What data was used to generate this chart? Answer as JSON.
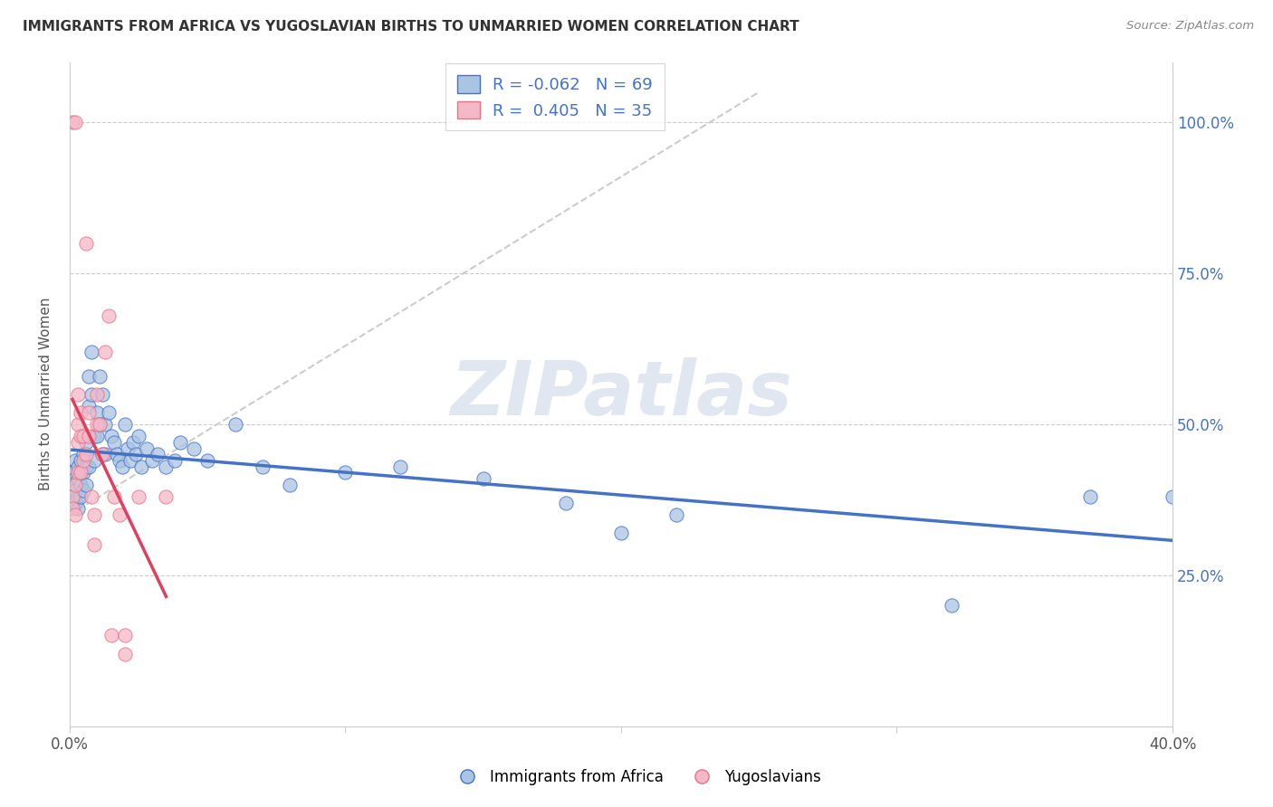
{
  "title": "IMMIGRANTS FROM AFRICA VS YUGOSLAVIAN BIRTHS TO UNMARRIED WOMEN CORRELATION CHART",
  "source": "Source: ZipAtlas.com",
  "ylabel": "Births to Unmarried Women",
  "xlim": [
    0.0,
    0.4
  ],
  "ylim": [
    0.0,
    1.1
  ],
  "yticks": [
    0.0,
    0.25,
    0.5,
    0.75,
    1.0
  ],
  "ytick_labels": [
    "",
    "25.0%",
    "50.0%",
    "75.0%",
    "100.0%"
  ],
  "xticks": [
    0.0,
    0.1,
    0.2,
    0.3,
    0.4
  ],
  "xtick_labels": [
    "0.0%",
    "",
    "",
    "",
    "40.0%"
  ],
  "legend_blue_label": "Immigrants from Africa",
  "legend_pink_label": "Yugoslavians",
  "R_blue": -0.062,
  "N_blue": 69,
  "R_pink": 0.405,
  "N_pink": 35,
  "blue_color": "#aac4e4",
  "pink_color": "#f5b8c8",
  "blue_edge_color": "#4472c4",
  "pink_edge_color": "#e87585",
  "blue_line_color": "#4472c4",
  "pink_line_color": "#e04060",
  "watermark": "ZIPatlas",
  "watermark_color": "#ccd8e8",
  "background_color": "#ffffff",
  "grid_color": "#cccccc",
  "blue_scatter": [
    [
      0.001,
      0.42
    ],
    [
      0.001,
      0.4
    ],
    [
      0.001,
      0.38
    ],
    [
      0.002,
      0.44
    ],
    [
      0.002,
      0.41
    ],
    [
      0.002,
      0.39
    ],
    [
      0.002,
      0.37
    ],
    [
      0.003,
      0.43
    ],
    [
      0.003,
      0.41
    ],
    [
      0.003,
      0.38
    ],
    [
      0.003,
      0.36
    ],
    [
      0.004,
      0.44
    ],
    [
      0.004,
      0.42
    ],
    [
      0.004,
      0.4
    ],
    [
      0.004,
      0.38
    ],
    [
      0.005,
      0.45
    ],
    [
      0.005,
      0.42
    ],
    [
      0.005,
      0.39
    ],
    [
      0.006,
      0.47
    ],
    [
      0.006,
      0.43
    ],
    [
      0.006,
      0.4
    ],
    [
      0.007,
      0.58
    ],
    [
      0.007,
      0.53
    ],
    [
      0.007,
      0.43
    ],
    [
      0.008,
      0.62
    ],
    [
      0.008,
      0.55
    ],
    [
      0.009,
      0.48
    ],
    [
      0.009,
      0.44
    ],
    [
      0.01,
      0.52
    ],
    [
      0.01,
      0.48
    ],
    [
      0.011,
      0.58
    ],
    [
      0.011,
      0.5
    ],
    [
      0.012,
      0.55
    ],
    [
      0.012,
      0.45
    ],
    [
      0.013,
      0.5
    ],
    [
      0.013,
      0.45
    ],
    [
      0.014,
      0.52
    ],
    [
      0.015,
      0.48
    ],
    [
      0.016,
      0.47
    ],
    [
      0.017,
      0.45
    ],
    [
      0.018,
      0.44
    ],
    [
      0.019,
      0.43
    ],
    [
      0.02,
      0.5
    ],
    [
      0.021,
      0.46
    ],
    [
      0.022,
      0.44
    ],
    [
      0.023,
      0.47
    ],
    [
      0.024,
      0.45
    ],
    [
      0.025,
      0.48
    ],
    [
      0.026,
      0.43
    ],
    [
      0.028,
      0.46
    ],
    [
      0.03,
      0.44
    ],
    [
      0.032,
      0.45
    ],
    [
      0.035,
      0.43
    ],
    [
      0.038,
      0.44
    ],
    [
      0.04,
      0.47
    ],
    [
      0.045,
      0.46
    ],
    [
      0.05,
      0.44
    ],
    [
      0.06,
      0.5
    ],
    [
      0.07,
      0.43
    ],
    [
      0.08,
      0.4
    ],
    [
      0.1,
      0.42
    ],
    [
      0.12,
      0.43
    ],
    [
      0.15,
      0.41
    ],
    [
      0.18,
      0.37
    ],
    [
      0.2,
      0.32
    ],
    [
      0.22,
      0.35
    ],
    [
      0.32,
      0.2
    ],
    [
      0.37,
      0.38
    ],
    [
      0.4,
      0.38
    ]
  ],
  "pink_scatter": [
    [
      0.001,
      0.38
    ],
    [
      0.001,
      0.36
    ],
    [
      0.001,
      1.0
    ],
    [
      0.002,
      1.0
    ],
    [
      0.002,
      0.4
    ],
    [
      0.002,
      0.35
    ],
    [
      0.003,
      0.55
    ],
    [
      0.003,
      0.5
    ],
    [
      0.003,
      0.47
    ],
    [
      0.003,
      0.42
    ],
    [
      0.004,
      0.52
    ],
    [
      0.004,
      0.48
    ],
    [
      0.004,
      0.42
    ],
    [
      0.005,
      0.48
    ],
    [
      0.005,
      0.44
    ],
    [
      0.006,
      0.8
    ],
    [
      0.006,
      0.45
    ],
    [
      0.007,
      0.52
    ],
    [
      0.007,
      0.48
    ],
    [
      0.008,
      0.38
    ],
    [
      0.009,
      0.35
    ],
    [
      0.009,
      0.3
    ],
    [
      0.01,
      0.55
    ],
    [
      0.01,
      0.5
    ],
    [
      0.011,
      0.5
    ],
    [
      0.012,
      0.45
    ],
    [
      0.013,
      0.62
    ],
    [
      0.014,
      0.68
    ],
    [
      0.015,
      0.15
    ],
    [
      0.016,
      0.38
    ],
    [
      0.018,
      0.35
    ],
    [
      0.02,
      0.15
    ],
    [
      0.02,
      0.12
    ],
    [
      0.025,
      0.38
    ],
    [
      0.035,
      0.38
    ]
  ]
}
